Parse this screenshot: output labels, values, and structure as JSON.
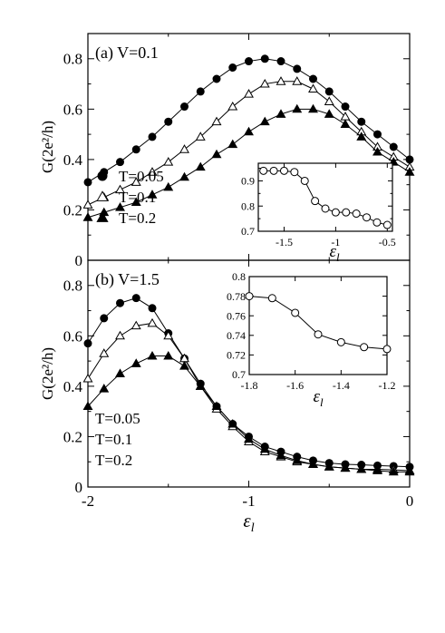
{
  "chart_data": [
    {
      "type": "line",
      "panel_label": "(a) V=0.1",
      "xlim": [
        -2,
        0
      ],
      "ylim": [
        0,
        0.9
      ],
      "xticks": [
        -2,
        -1,
        0
      ],
      "xtick_labels": [
        "",
        "",
        ""
      ],
      "yticks": [
        0,
        0.2,
        0.4,
        0.6,
        0.8
      ],
      "ytick_labels": [
        "0",
        "0.2",
        "0.4",
        "0.6",
        "0.8"
      ],
      "ylabel": "G(2e²/h)",
      "xlabel": "",
      "legend_placement": "lower-left",
      "series": [
        {
          "name": "T=0.05",
          "marker": "circle-filled",
          "x": [
            -2.0,
            -1.9,
            -1.8,
            -1.7,
            -1.6,
            -1.5,
            -1.4,
            -1.3,
            -1.2,
            -1.1,
            -1.0,
            -0.9,
            -0.8,
            -0.7,
            -0.6,
            -0.5,
            -0.4,
            -0.3,
            -0.2,
            -0.1,
            0.0
          ],
          "y": [
            0.31,
            0.35,
            0.39,
            0.44,
            0.49,
            0.55,
            0.61,
            0.67,
            0.72,
            0.765,
            0.79,
            0.8,
            0.79,
            0.76,
            0.72,
            0.67,
            0.61,
            0.55,
            0.5,
            0.45,
            0.4
          ]
        },
        {
          "name": "T=0.1",
          "marker": "triangle-open",
          "x": [
            -2.0,
            -1.9,
            -1.8,
            -1.7,
            -1.6,
            -1.5,
            -1.4,
            -1.3,
            -1.2,
            -1.1,
            -1.0,
            -0.9,
            -0.8,
            -0.7,
            -0.6,
            -0.5,
            -0.4,
            -0.3,
            -0.2,
            -0.1,
            0.0
          ],
          "y": [
            0.22,
            0.25,
            0.28,
            0.31,
            0.35,
            0.39,
            0.44,
            0.49,
            0.55,
            0.61,
            0.66,
            0.7,
            0.71,
            0.71,
            0.68,
            0.63,
            0.57,
            0.51,
            0.45,
            0.41,
            0.37
          ]
        },
        {
          "name": "T=0.2",
          "marker": "triangle-filled",
          "x": [
            -2.0,
            -1.9,
            -1.8,
            -1.7,
            -1.6,
            -1.5,
            -1.4,
            -1.3,
            -1.2,
            -1.1,
            -1.0,
            -0.9,
            -0.8,
            -0.7,
            -0.6,
            -0.5,
            -0.4,
            -0.3,
            -0.2,
            -0.1,
            0.0
          ],
          "y": [
            0.17,
            0.19,
            0.21,
            0.23,
            0.26,
            0.29,
            0.33,
            0.37,
            0.42,
            0.46,
            0.51,
            0.55,
            0.58,
            0.6,
            0.6,
            0.58,
            0.54,
            0.49,
            0.43,
            0.39,
            0.35
          ]
        }
      ],
      "inset": {
        "type": "line",
        "xlim": [
          -1.75,
          -0.45
        ],
        "ylim": [
          0.7,
          0.97
        ],
        "xticks": [
          -1.5,
          -1,
          -0.5
        ],
        "xtick_labels": [
          "-1.5",
          "-1",
          "-0.5"
        ],
        "yticks": [
          0.7,
          0.8,
          0.9
        ],
        "ytick_labels": [
          "0.7",
          "0.8",
          "0.9"
        ],
        "xlabel": "εl",
        "series": [
          {
            "marker": "circle-open",
            "x": [
              -1.7,
              -1.6,
              -1.5,
              -1.4,
              -1.3,
              -1.2,
              -1.1,
              -1.0,
              -0.9,
              -0.8,
              -0.7,
              -0.6,
              -0.5
            ],
            "y": [
              0.94,
              0.94,
              0.94,
              0.935,
              0.9,
              0.82,
              0.79,
              0.775,
              0.775,
              0.77,
              0.755,
              0.735,
              0.725
            ]
          }
        ]
      }
    },
    {
      "type": "line",
      "panel_label": "(b) V=1.5",
      "xlim": [
        -2,
        0
      ],
      "ylim": [
        0,
        0.9
      ],
      "xticks": [
        -2,
        -1,
        0
      ],
      "xtick_labels": [
        "-2",
        "-1",
        "0"
      ],
      "yticks": [
        0,
        0.2,
        0.4,
        0.6,
        0.8
      ],
      "ytick_labels": [
        "0",
        "0.2",
        "0.4",
        "0.6",
        "0.8"
      ],
      "ylabel": "G(2e²/h)",
      "xlabel": "εl",
      "legend_placement": "lower-left",
      "series": [
        {
          "name": "T=0.05",
          "marker": "circle-filled",
          "x": [
            -2.0,
            -1.9,
            -1.8,
            -1.7,
            -1.6,
            -1.5,
            -1.4,
            -1.3,
            -1.2,
            -1.1,
            -1.0,
            -0.9,
            -0.8,
            -0.7,
            -0.6,
            -0.5,
            -0.4,
            -0.3,
            -0.2,
            -0.1,
            0.0
          ],
          "y": [
            0.57,
            0.67,
            0.73,
            0.75,
            0.71,
            0.61,
            0.51,
            0.41,
            0.32,
            0.25,
            0.2,
            0.16,
            0.14,
            0.12,
            0.105,
            0.095,
            0.09,
            0.088,
            0.085,
            0.083,
            0.08
          ]
        },
        {
          "name": "T=0.1",
          "marker": "triangle-open",
          "x": [
            -2.0,
            -1.9,
            -1.8,
            -1.7,
            -1.6,
            -1.5,
            -1.4,
            -1.3,
            -1.2,
            -1.1,
            -1.0,
            -0.9,
            -0.8,
            -0.7,
            -0.6,
            -0.5,
            -0.4,
            -0.3,
            -0.2,
            -0.1,
            0.0
          ],
          "y": [
            0.43,
            0.53,
            0.6,
            0.64,
            0.65,
            0.6,
            0.51,
            0.4,
            0.31,
            0.24,
            0.18,
            0.14,
            0.12,
            0.1,
            0.09,
            0.08,
            0.075,
            0.07,
            0.07,
            0.068,
            0.065
          ]
        },
        {
          "name": "T=0.2",
          "marker": "triangle-filled",
          "x": [
            -2.0,
            -1.9,
            -1.8,
            -1.7,
            -1.6,
            -1.5,
            -1.4,
            -1.3,
            -1.2,
            -1.1,
            -1.0,
            -0.9,
            -0.8,
            -0.7,
            -0.6,
            -0.5,
            -0.4,
            -0.3,
            -0.2,
            -0.1,
            0.0
          ],
          "y": [
            0.32,
            0.39,
            0.45,
            0.49,
            0.52,
            0.52,
            0.48,
            0.4,
            0.32,
            0.25,
            0.19,
            0.15,
            0.125,
            0.105,
            0.09,
            0.08,
            0.075,
            0.07,
            0.065,
            0.06,
            0.06
          ]
        }
      ],
      "inset": {
        "type": "line",
        "xlim": [
          -1.8,
          -1.2
        ],
        "ylim": [
          0.7,
          0.8
        ],
        "xticks": [
          -1.8,
          -1.6,
          -1.4,
          -1.2
        ],
        "xtick_labels": [
          "-1.8",
          "-1.6",
          "-1.4",
          "-1.2"
        ],
        "yticks": [
          0.7,
          0.72,
          0.74,
          0.76,
          0.78,
          0.8
        ],
        "ytick_labels": [
          "0.7",
          "0.72",
          "0.74",
          "0.76",
          "0.78",
          "0.8"
        ],
        "xlabel": "εl",
        "series": [
          {
            "marker": "circle-open",
            "x": [
              -1.8,
              -1.7,
              -1.6,
              -1.5,
              -1.4,
              -1.3,
              -1.2
            ],
            "y": [
              0.78,
              0.778,
              0.763,
              0.741,
              0.733,
              0.728,
              0.726
            ]
          }
        ]
      }
    }
  ]
}
